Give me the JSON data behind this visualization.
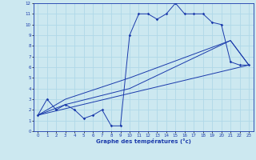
{
  "xlabel": "Graphe des temératures (°c)",
  "bg_color": "#cce8f0",
  "grid_color": "#b0d8e8",
  "line_color": "#1a3aab",
  "xlim": [
    -0.5,
    23.5
  ],
  "ylim": [
    0,
    12
  ],
  "xticks": [
    0,
    1,
    2,
    3,
    4,
    5,
    6,
    7,
    8,
    9,
    10,
    11,
    12,
    13,
    14,
    15,
    16,
    17,
    18,
    19,
    20,
    21,
    22,
    23
  ],
  "yticks": [
    0,
    1,
    2,
    3,
    4,
    5,
    6,
    7,
    8,
    9,
    10,
    11,
    12
  ],
  "series0": {
    "x": [
      0,
      1,
      2,
      3,
      4,
      5,
      6,
      7,
      8,
      9,
      10,
      11,
      12,
      13,
      14,
      15,
      16,
      17,
      18,
      19,
      20,
      21,
      22,
      23
    ],
    "y": [
      1.5,
      3.0,
      2.0,
      2.5,
      2.0,
      1.2,
      1.5,
      2.0,
      0.5,
      0.5,
      9.0,
      11.0,
      11.0,
      10.5,
      11.0,
      12.0,
      11.0,
      11.0,
      11.0,
      10.2,
      10.0,
      6.5,
      6.2,
      6.2
    ]
  },
  "series1": {
    "x": [
      0,
      3,
      10,
      21,
      23
    ],
    "y": [
      1.5,
      3.0,
      5.0,
      8.5,
      6.2
    ]
  },
  "series2": {
    "x": [
      0,
      3,
      10,
      21,
      23
    ],
    "y": [
      1.5,
      2.5,
      4.0,
      8.5,
      6.2
    ]
  },
  "series3": {
    "x": [
      0,
      23
    ],
    "y": [
      1.5,
      6.2
    ]
  }
}
